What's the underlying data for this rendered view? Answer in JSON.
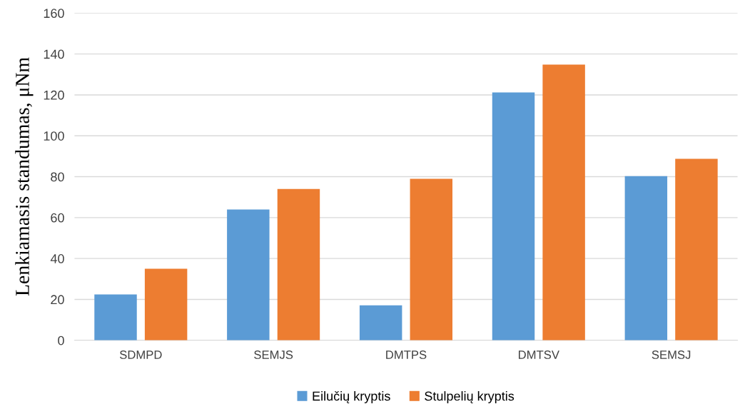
{
  "chart_data": {
    "type": "bar",
    "ylabel": "Lenkiamasis standumas, μNm",
    "categories": [
      "SDMPD",
      "SEMJS",
      "DMTPS",
      "DMTSV",
      "SEMSJ"
    ],
    "series": [
      {
        "name": "Eilučių kryptis",
        "color": "#5b9bd5",
        "values": [
          22.4,
          64,
          17.1,
          121.2,
          80.3
        ]
      },
      {
        "name": "Stulpelių kryptis",
        "color": "#ed7d31",
        "values": [
          35,
          74,
          79,
          134.8,
          88.7
        ]
      }
    ],
    "ylim": [
      0,
      160
    ],
    "yticks": [
      0,
      20,
      40,
      60,
      80,
      100,
      120,
      140,
      160
    ],
    "grid": "y",
    "legend": "bottom"
  }
}
